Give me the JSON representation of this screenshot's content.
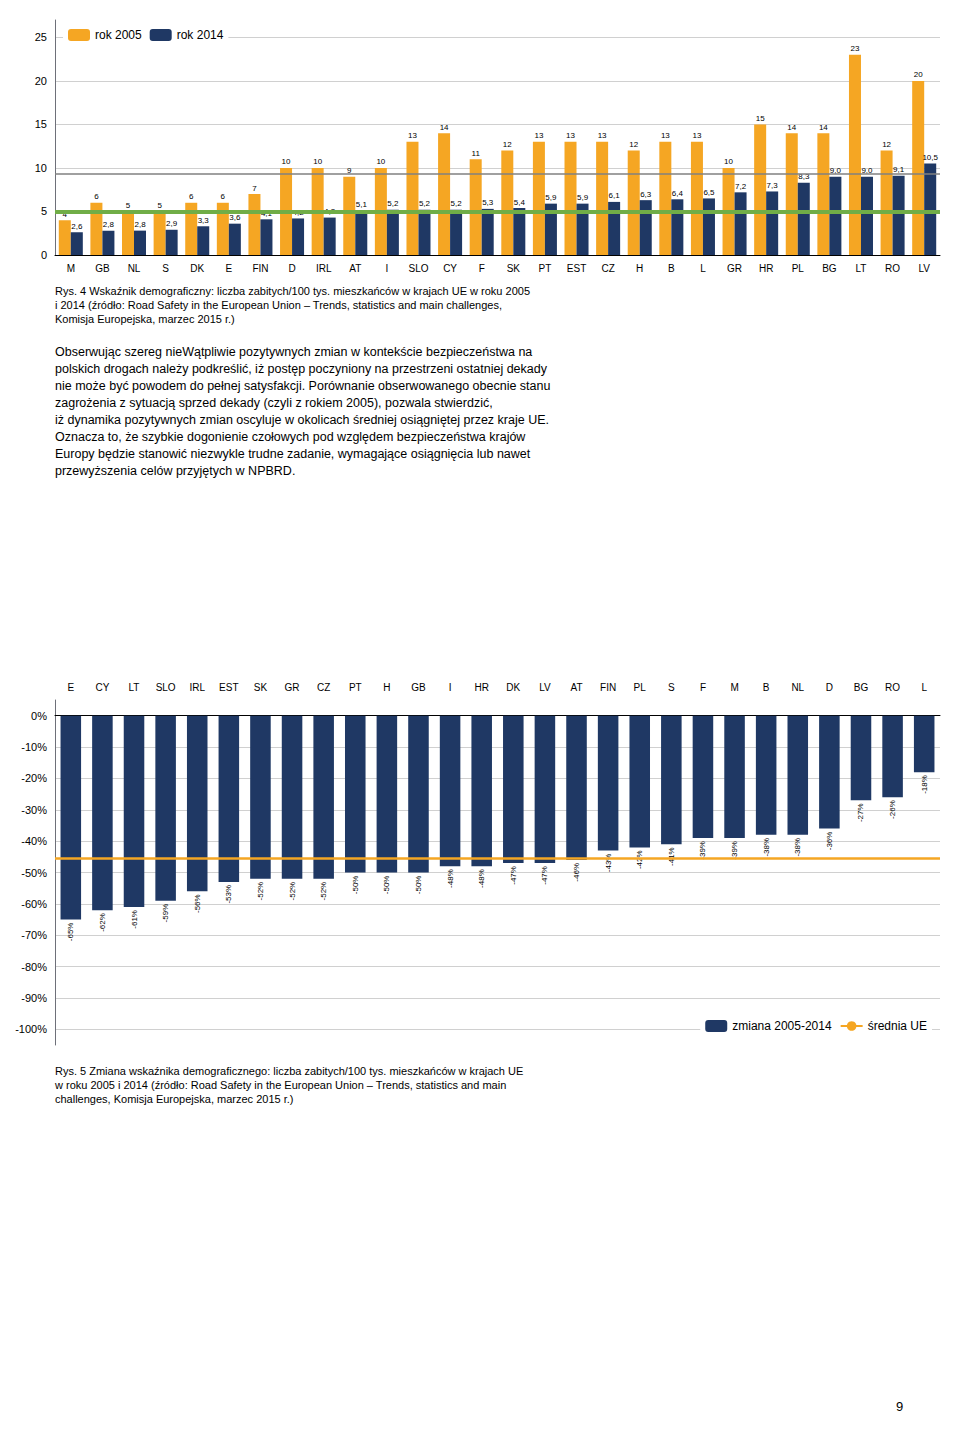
{
  "chart_data": [
    {
      "type": "bar",
      "categories": [
        "M",
        "GB",
        "NL",
        "S",
        "DK",
        "E",
        "FIN",
        "D",
        "IRL",
        "AT",
        "I",
        "SLO",
        "CY",
        "F",
        "SK",
        "PT",
        "EST",
        "CZ",
        "H",
        "B",
        "L",
        "GR",
        "HR",
        "PL",
        "BG",
        "LT",
        "RO",
        "LV"
      ],
      "series": [
        {
          "name": "rok 2005",
          "color": "#F5A623",
          "values": [
            4,
            6,
            5,
            5,
            6,
            6,
            7,
            10,
            10,
            9,
            10,
            13,
            14,
            11,
            12,
            13,
            13,
            13,
            12,
            13,
            13,
            10,
            15,
            14,
            14,
            23,
            12,
            20
          ]
        },
        {
          "name": "rok 2014",
          "color": "#1F3864",
          "values": [
            2.6,
            2.8,
            2.8,
            2.9,
            3.3,
            3.6,
            4.1,
            4.2,
            4.3,
            5.1,
            5.2,
            5.2,
            5.2,
            5.3,
            5.4,
            5.9,
            5.9,
            6.1,
            6.3,
            6.4,
            6.5,
            7.2,
            7.3,
            8.3,
            9.0,
            9.0,
            9.1,
            10.5
          ],
          "value_labels": [
            "2,6",
            "2,8",
            "2,8",
            "2,9",
            "3,3",
            "3,6",
            "4,1",
            "4,2",
            "4,3",
            "5,1",
            "5,2",
            "5,2",
            "5,2",
            "5,3",
            "5,4",
            "5,9",
            "5,9",
            "6,1",
            "6,3",
            "6,4",
            "6,5",
            "7,2",
            "7,3",
            "8,3",
            "9,0",
            "9,0",
            "9,1",
            "10,5"
          ]
        }
      ],
      "hlines": [
        {
          "value": 9.3,
          "color": "#808080"
        },
        {
          "value": 5.0,
          "color": "#70AD47"
        }
      ],
      "ylim": [
        0,
        27
      ],
      "yticks": [
        0,
        5,
        10,
        15,
        20,
        25
      ],
      "grid": true,
      "legend": "upper left",
      "data_labels": true,
      "annotations": [
        "Rys. 4 Wskaźnik demograficzny: liczba zabitych/100 tys. mieszkańców w krajach UE w roku 2005",
        "i 2014 (źródło: Road Safety in the European Union – Trends, statistics and main challenges,",
        "Komisja Europejska, marzec 2015 r.)",
        "Obserwując szereg nieWątpliwie pozytywnych zmian w kontekście bezpieczeństwa na",
        "polskich drogach należy podkreślić, iż postęp poczyniony na przestrzeni ostatniej dekady",
        "nie może być powodem do pełnej satysfakcji. Porównanie obserwowanego obecnie stanu",
        "zagrożenia z sytuacją sprzed dekady (czyli z rokiem 2005), pozwala stwierdzić,",
        "iż dynamika pozytywnych zmian oscyluje w okolicach średniej osiągniętej przez kraje UE.",
        "Oznacza to, że szybkie dogonienie czołowych pod względem bezpieczeństwa krajów",
        "Europy będzie stanowić niezwykle trudne zadanie, wymagające osiągnięcia lub nawet",
        "przewyższenia celów przyjętych w NPBRD."
      ]
    },
    {
      "type": "bar",
      "categories": [
        "E",
        "CY",
        "LT",
        "SLO",
        "IRL",
        "EST",
        "SK",
        "GR",
        "CZ",
        "PT",
        "H",
        "GB",
        "I",
        "HR",
        "DK",
        "LV",
        "AT",
        "FIN",
        "PL",
        "S",
        "F",
        "M",
        "B",
        "NL",
        "D",
        "BG",
        "RO",
        "L"
      ],
      "series": [
        {
          "name": "zmiana 2005-2014",
          "color": "#1F3864",
          "values": [
            -65,
            -62,
            -61,
            -59,
            -56,
            -53,
            -52,
            -52,
            -52,
            -50,
            -50,
            -50,
            -48,
            -48,
            -47,
            -47,
            -46,
            -43,
            -42,
            -41,
            -39,
            -39,
            -38,
            -38,
            -36,
            -27,
            -26,
            -18
          ],
          "value_labels": [
            "-65%",
            "-62%",
            "-61%",
            "-59%",
            "-56%",
            "-53%",
            "-52%",
            "-52%",
            "-52%",
            "-50%",
            "-50%",
            "-50%",
            "-48%",
            "-48%",
            "-47%",
            "-47%",
            "-46%",
            "-43%",
            "-42%",
            "-41%",
            "-39%",
            "-39%",
            "-38%",
            "-38%",
            "-36%",
            "-27%",
            "-26%",
            "-18%"
          ]
        },
        {
          "name": "średnia UE",
          "type": "hline",
          "color": "#F5A623",
          "value": -45.5
        }
      ],
      "ylim": [
        -105,
        5
      ],
      "yticks": [
        {
          "value": 0,
          "label": "0%"
        },
        {
          "value": -10,
          "label": "-10%"
        },
        {
          "value": -20,
          "label": "-20%"
        },
        {
          "value": -30,
          "label": "-30%"
        },
        {
          "value": -40,
          "label": "-40%"
        },
        {
          "value": -50,
          "label": "-50%"
        },
        {
          "value": -60,
          "label": "-60%"
        },
        {
          "value": -70,
          "label": "-70%"
        },
        {
          "value": -80,
          "label": "-80%"
        },
        {
          "value": -90,
          "label": "-90%"
        },
        {
          "value": -100,
          "label": "-100%"
        }
      ],
      "grid": true,
      "legend": "lower right",
      "data_labels": true,
      "annotations": [
        "Rys. 5 Zmiana wskaźnika demograficznego: liczba zabitych/100 tys. mieszkańców w krajach UE",
        "w roku 2005 i 2014 (źródło: Road Safety in the European Union – Trends, statistics and main",
        "challenges, Komisja Europejska, marzec 2015 r.)",
        "9"
      ]
    }
  ]
}
